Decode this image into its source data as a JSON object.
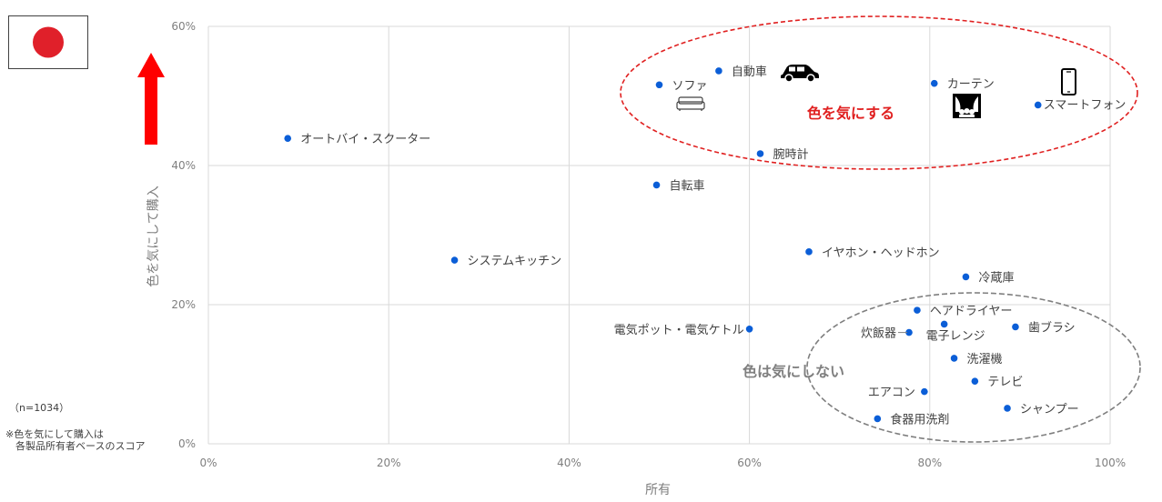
{
  "flag": {
    "country": "Japan",
    "disc_color": "#e0202a"
  },
  "notes": {
    "sample_size": "（n=1034）",
    "footnote_line1": "※色を気にして購入は",
    "footnote_line2": "　各製品所有者ベースのスコア"
  },
  "annotations": {
    "care_label": "色を気にする",
    "dont_care_label": "色は気にしない",
    "care_color": "#e02020",
    "dont_care_color": "#7f7f7f"
  },
  "chart_data": {
    "type": "scatter",
    "xlabel": "所有",
    "ylabel": "色を気にして購入",
    "xlim": [
      0,
      100
    ],
    "ylim": [
      0,
      60
    ],
    "x_ticks": [
      "0%",
      "20%",
      "40%",
      "60%",
      "80%",
      "100%"
    ],
    "y_ticks": [
      "0%",
      "20%",
      "40%",
      "60%"
    ],
    "grid": true,
    "point_color": "#0b5ed7",
    "points": [
      {
        "label": "自動車",
        "x": 56.6,
        "y": 53.6
      },
      {
        "label": "ソファ",
        "x": 50.0,
        "y": 51.6
      },
      {
        "label": "カーテン",
        "x": 80.5,
        "y": 51.8
      },
      {
        "label": "スマートフォン",
        "x": 92.0,
        "y": 48.7
      },
      {
        "label": "オートバイ・スクーター",
        "x": 8.8,
        "y": 43.9
      },
      {
        "label": "腕時計",
        "x": 61.2,
        "y": 41.7
      },
      {
        "label": "自転車",
        "x": 49.7,
        "y": 37.2
      },
      {
        "label": "イヤホン・ヘッドホン",
        "x": 66.6,
        "y": 27.6
      },
      {
        "label": "システムキッチン",
        "x": 27.3,
        "y": 26.4
      },
      {
        "label": "冷蔵庫",
        "x": 84.0,
        "y": 24.0
      },
      {
        "label": "ヘアドライヤー",
        "x": 78.6,
        "y": 19.2
      },
      {
        "label": "電子レンジ",
        "x": 81.6,
        "y": 17.2
      },
      {
        "label": "歯ブラシ",
        "x": 89.5,
        "y": 16.8
      },
      {
        "label": "電気ポット・電気ケトル",
        "x": 60.0,
        "y": 16.5
      },
      {
        "label": "炊飯器",
        "x": 77.7,
        "y": 16.0
      },
      {
        "label": "洗濯機",
        "x": 82.7,
        "y": 12.3
      },
      {
        "label": "テレビ",
        "x": 85.0,
        "y": 9.0
      },
      {
        "label": "エアコン",
        "x": 79.4,
        "y": 7.5
      },
      {
        "label": "シャンプー",
        "x": 88.6,
        "y": 5.1
      },
      {
        "label": "食器用洗剤",
        "x": 74.2,
        "y": 3.6
      }
    ]
  }
}
